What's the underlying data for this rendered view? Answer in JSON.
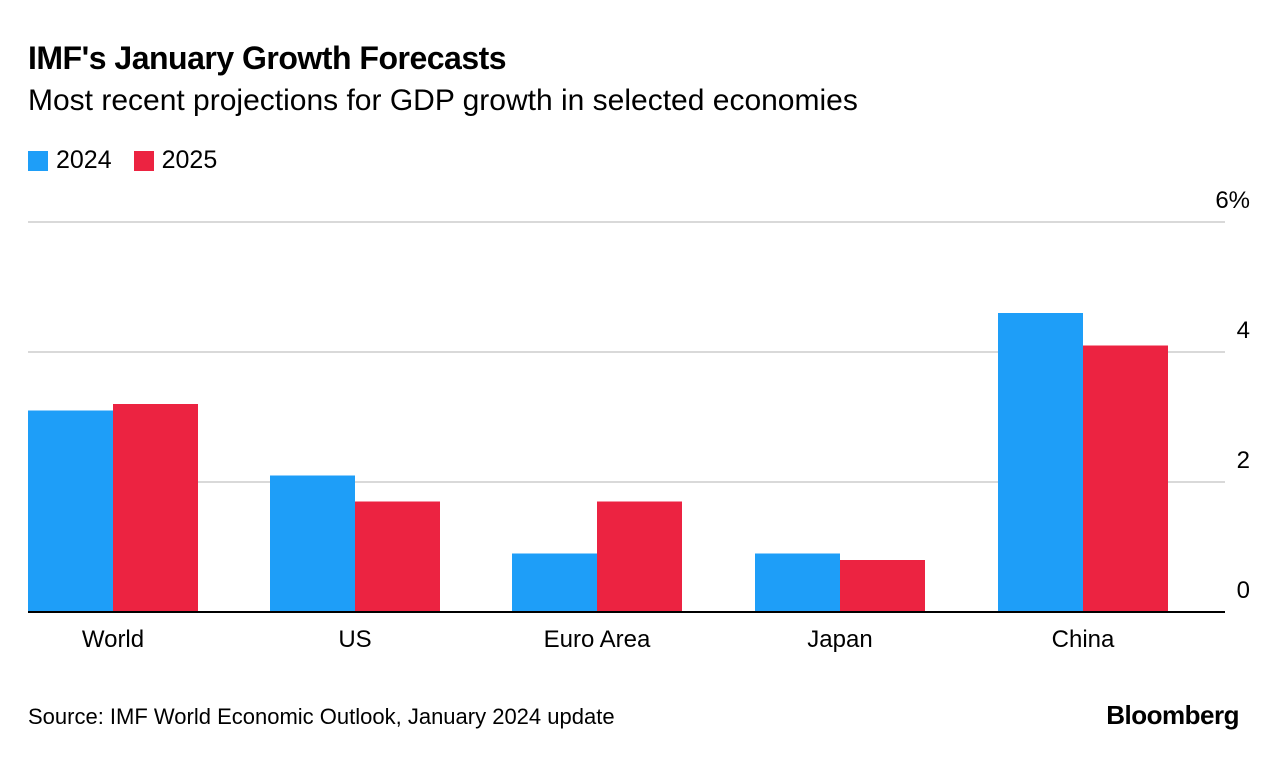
{
  "colors": {
    "series_2024": "#1E9EF8",
    "series_2025": "#EC2341",
    "grid": "#D9D9D9",
    "axis": "#000000"
  },
  "chart_data": {
    "type": "bar",
    "title": "IMF's January Growth Forecasts",
    "subtitle": "Most recent projections for GDP growth in selected economies",
    "categories": [
      "World",
      "US",
      "Euro Area",
      "Japan",
      "China"
    ],
    "series": [
      {
        "name": "2024",
        "values": [
          3.1,
          2.1,
          0.9,
          0.9,
          4.6
        ]
      },
      {
        "name": "2025",
        "values": [
          3.2,
          1.7,
          1.7,
          0.8,
          4.1
        ]
      }
    ],
    "yticks": [
      {
        "value": 0,
        "label": "0"
      },
      {
        "value": 2,
        "label": "2"
      },
      {
        "value": 4,
        "label": "4"
      },
      {
        "value": 6,
        "label": "6%"
      }
    ],
    "ylim": [
      0,
      6
    ],
    "xlabel": "",
    "ylabel": "",
    "grid": true,
    "legend_position": "top-left"
  },
  "footer": {
    "source": "Source: IMF World Economic Outlook, January 2024 update",
    "brand": "Bloomberg"
  }
}
